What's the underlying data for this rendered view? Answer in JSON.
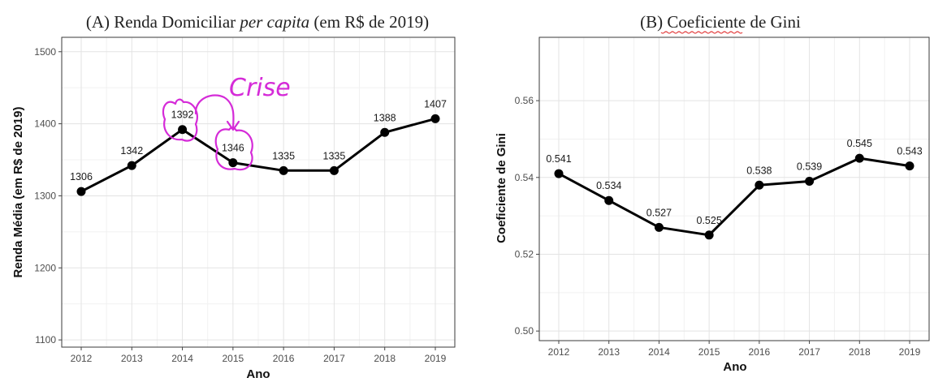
{
  "chart_data": [
    {
      "type": "line",
      "title_prefix": "(A) Renda Domiciliar ",
      "title_italic": "per capita",
      "title_suffix": " (em R$ de 2019)",
      "xlabel": "Ano",
      "ylabel": "Renda Média (em R$ de 2019)",
      "x": [
        2012,
        2013,
        2014,
        2015,
        2016,
        2017,
        2018,
        2019
      ],
      "values": [
        1306,
        1342,
        1392,
        1346,
        1335,
        1335,
        1388,
        1407
      ],
      "labels": [
        "1306",
        "1342",
        "1392",
        "1346",
        "1335",
        "1335",
        "1388",
        "1407"
      ],
      "ylim": [
        1090,
        1520
      ],
      "yticks": [
        1100,
        1200,
        1300,
        1400,
        1500
      ],
      "yticklabels": [
        "1100",
        "1200",
        "1300",
        "1400",
        "1500"
      ],
      "grid": true,
      "annotation": {
        "text": "Crise",
        "color": "#d52bd8"
      }
    },
    {
      "type": "line",
      "title_prefix": "(B) ",
      "title_main": "Coeficiente",
      "title_suffix": " de Gini",
      "xlabel": "Ano",
      "ylabel": "Coeficiente de Gini",
      "x": [
        2012,
        2013,
        2014,
        2015,
        2016,
        2017,
        2018,
        2019
      ],
      "values": [
        0.541,
        0.534,
        0.527,
        0.525,
        0.538,
        0.539,
        0.545,
        0.543
      ],
      "labels": [
        "0.541",
        "0.534",
        "0.527",
        "0.525",
        "0.538",
        "0.539",
        "0.545",
        "0.543"
      ],
      "ylim": [
        0.4975,
        0.5765
      ],
      "yticks": [
        0.5,
        0.52,
        0.54,
        0.56
      ],
      "yticklabels": [
        "0.50",
        "0.52",
        "0.54",
        "0.56"
      ],
      "grid": true
    }
  ]
}
